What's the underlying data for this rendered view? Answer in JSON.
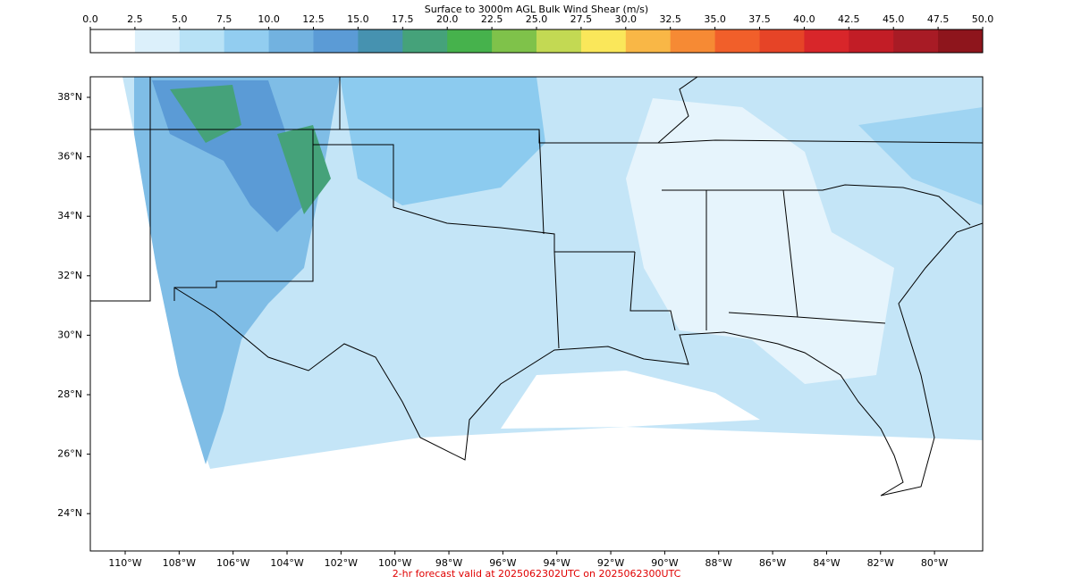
{
  "colorbar": {
    "title": "Surface to 3000m AGL Bulk Wind Shear (m/s)",
    "lim": [
      0,
      50
    ],
    "ticks": [
      {
        "value": 0,
        "label": "0.0"
      },
      2.5,
      {
        "value": 5,
        "label": "5.0"
      },
      7.5,
      {
        "value": 10,
        "label": "10.0"
      },
      12.5,
      {
        "value": 15,
        "label": "15.0"
      },
      17.5,
      {
        "value": 20,
        "label": "20.0"
      },
      22.5,
      {
        "value": 25,
        "label": "25.0"
      },
      27.5,
      {
        "value": 30,
        "label": "30.0"
      },
      32.5,
      {
        "value": 35,
        "label": "35.0"
      },
      37.5,
      {
        "value": 40,
        "label": "40.0"
      },
      42.5,
      {
        "value": 45,
        "label": "45.0"
      },
      47.5,
      {
        "value": 50,
        "label": "50.0"
      }
    ],
    "colors": [
      "#ffffff",
      "#dcf0fb",
      "#b8e2f6",
      "#92cdf0",
      "#72b2e0",
      "#5b9bd6",
      "#4692b0",
      "#45a27a",
      "#46b24c",
      "#7fc24a",
      "#c3d953",
      "#fae75a",
      "#f9b746",
      "#f68a34",
      "#f15f2a",
      "#e64427",
      "#d8262a",
      "#c21d26",
      "#a81b25",
      "#8e151c"
    ]
  },
  "map": {
    "lat_labels": [
      {
        "value": 38,
        "label": "38°N"
      },
      {
        "value": 36,
        "label": "36°N"
      },
      {
        "value": 34,
        "label": "34°N"
      },
      {
        "value": 32,
        "label": "32°N"
      },
      {
        "value": 30,
        "label": "30°N"
      },
      {
        "value": 28,
        "label": "28°N"
      },
      {
        "value": 26,
        "label": "26°N"
      },
      {
        "value": 24,
        "label": "24°N"
      }
    ],
    "lon_labels": [
      {
        "value": -110,
        "label": "110°W"
      },
      {
        "value": -108,
        "label": "108°W"
      },
      {
        "value": -106,
        "label": "106°W"
      },
      {
        "value": -104,
        "label": "104°W"
      },
      {
        "value": -102,
        "label": "102°W"
      },
      {
        "value": -100,
        "label": "100°W"
      },
      {
        "value": -98,
        "label": "98°W"
      },
      {
        "value": -96,
        "label": "96°W"
      },
      {
        "value": -94,
        "label": "94°W"
      },
      {
        "value": -92,
        "label": "92°W"
      },
      {
        "value": -90,
        "label": "90°W"
      },
      {
        "value": -88,
        "label": "88°W"
      },
      {
        "value": -86,
        "label": "86°W"
      },
      {
        "value": -84,
        "label": "84°W"
      },
      {
        "value": -82,
        "label": "82°W"
      },
      {
        "value": -80,
        "label": "80°W"
      }
    ]
  },
  "footer": "2-hr forecast valid at 2025062302UTC on 2025062300UTC"
}
